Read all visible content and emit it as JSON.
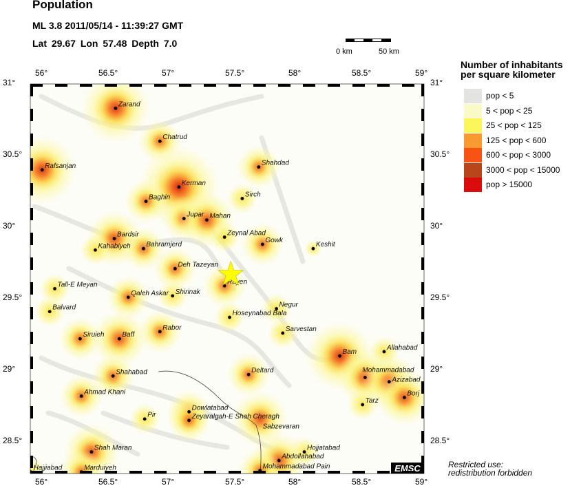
{
  "header": {
    "title": "Population",
    "event_line": "ML 3.8  2011/05/14 - 11:39:27 GMT",
    "location_line": "Lat 29.67    Lon  57.48    Depth  7.0"
  },
  "event": {
    "lat": 29.67,
    "lon": 57.48,
    "magnitude": "ML 3.8",
    "depth": 7.0,
    "marker": "star-icon",
    "marker_color": "#ffff00"
  },
  "scale_bar": {
    "start_label": "0 km",
    "end_label": "50 km"
  },
  "axes": {
    "lon_ticks": [
      "56°",
      "56.5°",
      "57°",
      "57.5°",
      "58°",
      "58.5°",
      "59°"
    ],
    "lon_values": [
      56,
      56.5,
      57,
      57.5,
      58,
      58.5,
      59
    ],
    "lat_ticks": [
      "31°",
      "30.5°",
      "30°",
      "29.5°",
      "29°",
      "28.5°"
    ],
    "lat_values": [
      31,
      30.5,
      30,
      29.5,
      29,
      28.5
    ],
    "lon_range": [
      55.9,
      59.0
    ],
    "lat_range": [
      28.3,
      31.0
    ]
  },
  "legend": {
    "title_line1": "Number of inhabitants",
    "title_line2": "per square kilometer",
    "items": [
      {
        "label": "pop < 5",
        "color": "#e3e4e0"
      },
      {
        "label": "5 < pop < 25",
        "color": "#fafac8"
      },
      {
        "label": "25 < pop < 125",
        "color": "#fbf75a"
      },
      {
        "label": "125 < pop < 600",
        "color": "#f99a30"
      },
      {
        "label": "600 < pop < 3000",
        "color": "#f65314"
      },
      {
        "label": "3000 < pop < 15000",
        "color": "#b8461a"
      },
      {
        "label": "pop > 15000",
        "color": "#d90e0c"
      }
    ]
  },
  "cities": [
    {
      "name": "Zarand",
      "lon": 56.57,
      "lat": 30.83,
      "pop": 4
    },
    {
      "name": "Chatrud",
      "lon": 56.92,
      "lat": 30.6,
      "pop": 2
    },
    {
      "name": "Rafsanjan",
      "lon": 55.99,
      "lat": 30.4,
      "pop": 4
    },
    {
      "name": "Kerman",
      "lon": 57.07,
      "lat": 30.28,
      "pop": 5
    },
    {
      "name": "Baghin",
      "lon": 56.81,
      "lat": 30.18,
      "pop": 2
    },
    {
      "name": "Jupar",
      "lon": 57.11,
      "lat": 30.06,
      "pop": 2
    },
    {
      "name": "Mahan",
      "lon": 57.29,
      "lat": 30.05,
      "pop": 3
    },
    {
      "name": "Shahdad",
      "lon": 57.7,
      "lat": 30.42,
      "pop": 2
    },
    {
      "name": "Sirch",
      "lon": 57.57,
      "lat": 30.2,
      "pop": 1
    },
    {
      "name": "Zeynal Abad",
      "lon": 57.43,
      "lat": 29.93,
      "pop": 1
    },
    {
      "name": "Gowk",
      "lon": 57.73,
      "lat": 29.88,
      "pop": 2
    },
    {
      "name": "Keshit",
      "lon": 58.13,
      "lat": 29.85,
      "pop": 0
    },
    {
      "name": "Bardsir",
      "lon": 56.56,
      "lat": 29.92,
      "pop": 3
    },
    {
      "name": "Kahabiyeh",
      "lon": 56.41,
      "lat": 29.84,
      "pop": 1
    },
    {
      "name": "Bahramjerd",
      "lon": 56.79,
      "lat": 29.85,
      "pop": 2
    },
    {
      "name": "Deh Tazeyan",
      "lon": 57.04,
      "lat": 29.71,
      "pop": 2
    },
    {
      "name": "Rayen",
      "lon": 57.43,
      "lat": 29.59,
      "pop": 2
    },
    {
      "name": "Tall-E Meyan",
      "lon": 56.09,
      "lat": 29.57,
      "pop": 1
    },
    {
      "name": "Qaleh Askar",
      "lon": 56.67,
      "lat": 29.51,
      "pop": 2
    },
    {
      "name": "Shirinak",
      "lon": 57.02,
      "lat": 29.52,
      "pop": 1
    },
    {
      "name": "Balvard",
      "lon": 56.05,
      "lat": 29.41,
      "pop": 1
    },
    {
      "name": "Negur",
      "lon": 57.84,
      "lat": 29.43,
      "pop": 1
    },
    {
      "name": "Hoseynabad Bala",
      "lon": 57.47,
      "lat": 29.37,
      "pop": 1
    },
    {
      "name": "Sarvestan",
      "lon": 57.89,
      "lat": 29.26,
      "pop": 1
    },
    {
      "name": "Siruieh",
      "lon": 56.29,
      "lat": 29.22,
      "pop": 2
    },
    {
      "name": "Baff",
      "lon": 56.6,
      "lat": 29.22,
      "pop": 3
    },
    {
      "name": "Rabor",
      "lon": 56.92,
      "lat": 29.27,
      "pop": 2
    },
    {
      "name": "Bam",
      "lon": 58.34,
      "lat": 29.1,
      "pop": 4
    },
    {
      "name": "Allahabad",
      "lon": 58.69,
      "lat": 29.13,
      "pop": 1
    },
    {
      "name": "Deltard",
      "lon": 57.62,
      "lat": 28.97,
      "pop": 2
    },
    {
      "name": "Mohammadabad",
      "lon": 58.54,
      "lat": 28.95,
      "pop": 3
    },
    {
      "name": "Azizabad",
      "lon": 58.73,
      "lat": 28.92,
      "pop": 3
    },
    {
      "name": "Borj",
      "lon": 58.85,
      "lat": 28.81,
      "pop": 3
    },
    {
      "name": "Tarz",
      "lon": 58.52,
      "lat": 28.76,
      "pop": 1
    },
    {
      "name": "Shahabad",
      "lon": 56.55,
      "lat": 28.96,
      "pop": 2
    },
    {
      "name": "Ahmad Khani",
      "lon": 56.3,
      "lat": 28.82,
      "pop": 2
    },
    {
      "name": "Pir",
      "lon": 56.8,
      "lat": 28.66,
      "pop": 1
    },
    {
      "name": "Dowlatabad",
      "lon": 57.15,
      "lat": 28.71,
      "pop": 2
    },
    {
      "name": "Zeyaralgah-E Shah Cheragh",
      "lon": 57.15,
      "lat": 28.65,
      "pop": 2
    },
    {
      "name": "Sabzevaran",
      "lon": 57.71,
      "lat": 28.66,
      "pop": 3,
      "no_dot": true
    },
    {
      "name": "Hojjatabad",
      "lon": 58.06,
      "lat": 28.43,
      "pop": 1
    },
    {
      "name": "Abdollahabad",
      "lon": 57.86,
      "lat": 28.37,
      "pop": 3
    },
    {
      "name": "Mohammadabad Pain",
      "lon": 57.71,
      "lat": 28.3,
      "pop": 2
    },
    {
      "name": "Shah Maran",
      "lon": 56.38,
      "lat": 28.43,
      "pop": 3
    },
    {
      "name": "Hajjiabad",
      "lon": 55.9,
      "lat": 28.29,
      "pop": 1
    },
    {
      "name": "Marduiyeh",
      "lon": 56.3,
      "lat": 28.29,
      "pop": 2
    }
  ],
  "logo": "EMSC",
  "notice": {
    "line1": "Restricted use:",
    "line2": "redistribution forbidden"
  }
}
